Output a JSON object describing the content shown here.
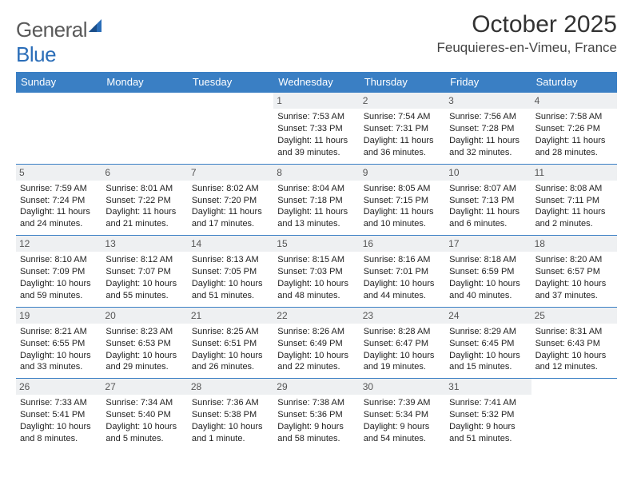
{
  "brand": {
    "part1": "General",
    "part2": "Blue"
  },
  "title": "October 2025",
  "location": "Feuquieres-en-Vimeu, France",
  "colors": {
    "header_bg": "#3a7fc4",
    "header_text": "#ffffff",
    "daynum_bg": "#eef0f2",
    "border": "#3a7fc4",
    "title_color": "#333333",
    "body_text": "#222222",
    "brand_gray": "#5a5a5a",
    "brand_blue": "#2a6db8"
  },
  "typography": {
    "title_fontsize": 30,
    "location_fontsize": 17,
    "header_fontsize": 13,
    "cell_fontsize": 11,
    "daynum_fontsize": 12
  },
  "layout": {
    "columns": 7,
    "rows": 5,
    "cell_min_height": 89
  },
  "weekdays": [
    "Sunday",
    "Monday",
    "Tuesday",
    "Wednesday",
    "Thursday",
    "Friday",
    "Saturday"
  ],
  "weeks": [
    [
      {
        "day": "",
        "sunrise": "",
        "sunset": "",
        "daylight": ""
      },
      {
        "day": "",
        "sunrise": "",
        "sunset": "",
        "daylight": ""
      },
      {
        "day": "",
        "sunrise": "",
        "sunset": "",
        "daylight": ""
      },
      {
        "day": "1",
        "sunrise": "Sunrise: 7:53 AM",
        "sunset": "Sunset: 7:33 PM",
        "daylight": "Daylight: 11 hours and 39 minutes."
      },
      {
        "day": "2",
        "sunrise": "Sunrise: 7:54 AM",
        "sunset": "Sunset: 7:31 PM",
        "daylight": "Daylight: 11 hours and 36 minutes."
      },
      {
        "day": "3",
        "sunrise": "Sunrise: 7:56 AM",
        "sunset": "Sunset: 7:28 PM",
        "daylight": "Daylight: 11 hours and 32 minutes."
      },
      {
        "day": "4",
        "sunrise": "Sunrise: 7:58 AM",
        "sunset": "Sunset: 7:26 PM",
        "daylight": "Daylight: 11 hours and 28 minutes."
      }
    ],
    [
      {
        "day": "5",
        "sunrise": "Sunrise: 7:59 AM",
        "sunset": "Sunset: 7:24 PM",
        "daylight": "Daylight: 11 hours and 24 minutes."
      },
      {
        "day": "6",
        "sunrise": "Sunrise: 8:01 AM",
        "sunset": "Sunset: 7:22 PM",
        "daylight": "Daylight: 11 hours and 21 minutes."
      },
      {
        "day": "7",
        "sunrise": "Sunrise: 8:02 AM",
        "sunset": "Sunset: 7:20 PM",
        "daylight": "Daylight: 11 hours and 17 minutes."
      },
      {
        "day": "8",
        "sunrise": "Sunrise: 8:04 AM",
        "sunset": "Sunset: 7:18 PM",
        "daylight": "Daylight: 11 hours and 13 minutes."
      },
      {
        "day": "9",
        "sunrise": "Sunrise: 8:05 AM",
        "sunset": "Sunset: 7:15 PM",
        "daylight": "Daylight: 11 hours and 10 minutes."
      },
      {
        "day": "10",
        "sunrise": "Sunrise: 8:07 AM",
        "sunset": "Sunset: 7:13 PM",
        "daylight": "Daylight: 11 hours and 6 minutes."
      },
      {
        "day": "11",
        "sunrise": "Sunrise: 8:08 AM",
        "sunset": "Sunset: 7:11 PM",
        "daylight": "Daylight: 11 hours and 2 minutes."
      }
    ],
    [
      {
        "day": "12",
        "sunrise": "Sunrise: 8:10 AM",
        "sunset": "Sunset: 7:09 PM",
        "daylight": "Daylight: 10 hours and 59 minutes."
      },
      {
        "day": "13",
        "sunrise": "Sunrise: 8:12 AM",
        "sunset": "Sunset: 7:07 PM",
        "daylight": "Daylight: 10 hours and 55 minutes."
      },
      {
        "day": "14",
        "sunrise": "Sunrise: 8:13 AM",
        "sunset": "Sunset: 7:05 PM",
        "daylight": "Daylight: 10 hours and 51 minutes."
      },
      {
        "day": "15",
        "sunrise": "Sunrise: 8:15 AM",
        "sunset": "Sunset: 7:03 PM",
        "daylight": "Daylight: 10 hours and 48 minutes."
      },
      {
        "day": "16",
        "sunrise": "Sunrise: 8:16 AM",
        "sunset": "Sunset: 7:01 PM",
        "daylight": "Daylight: 10 hours and 44 minutes."
      },
      {
        "day": "17",
        "sunrise": "Sunrise: 8:18 AM",
        "sunset": "Sunset: 6:59 PM",
        "daylight": "Daylight: 10 hours and 40 minutes."
      },
      {
        "day": "18",
        "sunrise": "Sunrise: 8:20 AM",
        "sunset": "Sunset: 6:57 PM",
        "daylight": "Daylight: 10 hours and 37 minutes."
      }
    ],
    [
      {
        "day": "19",
        "sunrise": "Sunrise: 8:21 AM",
        "sunset": "Sunset: 6:55 PM",
        "daylight": "Daylight: 10 hours and 33 minutes."
      },
      {
        "day": "20",
        "sunrise": "Sunrise: 8:23 AM",
        "sunset": "Sunset: 6:53 PM",
        "daylight": "Daylight: 10 hours and 29 minutes."
      },
      {
        "day": "21",
        "sunrise": "Sunrise: 8:25 AM",
        "sunset": "Sunset: 6:51 PM",
        "daylight": "Daylight: 10 hours and 26 minutes."
      },
      {
        "day": "22",
        "sunrise": "Sunrise: 8:26 AM",
        "sunset": "Sunset: 6:49 PM",
        "daylight": "Daylight: 10 hours and 22 minutes."
      },
      {
        "day": "23",
        "sunrise": "Sunrise: 8:28 AM",
        "sunset": "Sunset: 6:47 PM",
        "daylight": "Daylight: 10 hours and 19 minutes."
      },
      {
        "day": "24",
        "sunrise": "Sunrise: 8:29 AM",
        "sunset": "Sunset: 6:45 PM",
        "daylight": "Daylight: 10 hours and 15 minutes."
      },
      {
        "day": "25",
        "sunrise": "Sunrise: 8:31 AM",
        "sunset": "Sunset: 6:43 PM",
        "daylight": "Daylight: 10 hours and 12 minutes."
      }
    ],
    [
      {
        "day": "26",
        "sunrise": "Sunrise: 7:33 AM",
        "sunset": "Sunset: 5:41 PM",
        "daylight": "Daylight: 10 hours and 8 minutes."
      },
      {
        "day": "27",
        "sunrise": "Sunrise: 7:34 AM",
        "sunset": "Sunset: 5:40 PM",
        "daylight": "Daylight: 10 hours and 5 minutes."
      },
      {
        "day": "28",
        "sunrise": "Sunrise: 7:36 AM",
        "sunset": "Sunset: 5:38 PM",
        "daylight": "Daylight: 10 hours and 1 minute."
      },
      {
        "day": "29",
        "sunrise": "Sunrise: 7:38 AM",
        "sunset": "Sunset: 5:36 PM",
        "daylight": "Daylight: 9 hours and 58 minutes."
      },
      {
        "day": "30",
        "sunrise": "Sunrise: 7:39 AM",
        "sunset": "Sunset: 5:34 PM",
        "daylight": "Daylight: 9 hours and 54 minutes."
      },
      {
        "day": "31",
        "sunrise": "Sunrise: 7:41 AM",
        "sunset": "Sunset: 5:32 PM",
        "daylight": "Daylight: 9 hours and 51 minutes."
      },
      {
        "day": "",
        "sunrise": "",
        "sunset": "",
        "daylight": ""
      }
    ]
  ]
}
